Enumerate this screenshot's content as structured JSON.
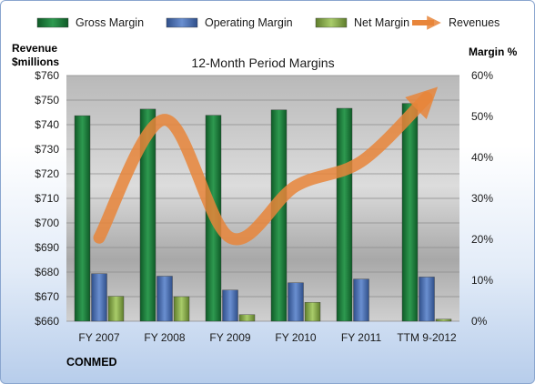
{
  "chart_data": {
    "type": "bar",
    "title": "12-Month Period Margins",
    "company": "CONMED",
    "categories": [
      "FY 2007",
      "FY 2008",
      "FY 2009",
      "FY 2010",
      "FY 2011",
      "TTM 9-2012"
    ],
    "y_left": {
      "title_line1": "Revenue",
      "title_line2": "$millions",
      "min": 660,
      "max": 760,
      "step": 10,
      "tick_labels": [
        "$660",
        "$670",
        "$680",
        "$690",
        "$700",
        "$710",
        "$720",
        "$730",
        "$740",
        "$750",
        "$760"
      ]
    },
    "y_right": {
      "title": "Margin %",
      "min": 0,
      "max": 60,
      "step": 10,
      "tick_labels": [
        "0%",
        "10%",
        "20%",
        "30%",
        "40%",
        "50%",
        "60%"
      ]
    },
    "series": [
      {
        "name": "Gross Margin",
        "type": "bar",
        "axis": "right",
        "color": "#1e7a3a",
        "values": [
          50.2,
          51.8,
          50.3,
          51.6,
          52.0,
          53.2
        ]
      },
      {
        "name": "Operating Margin",
        "type": "bar",
        "axis": "right",
        "color": "#4a6fb0",
        "values": [
          11.6,
          11.0,
          7.6,
          9.4,
          10.3,
          10.8
        ]
      },
      {
        "name": "Net Margin",
        "type": "bar",
        "axis": "right",
        "color": "#8cae4e",
        "values": [
          6.1,
          6.0,
          1.6,
          4.6,
          0.0,
          0.5
        ]
      },
      {
        "name": "Revenues",
        "type": "line",
        "axis": "left",
        "color": "#e8853a",
        "values": [
          694,
          742,
          694,
          715,
          725,
          751
        ]
      }
    ],
    "grid": true,
    "legend_position": "top"
  }
}
